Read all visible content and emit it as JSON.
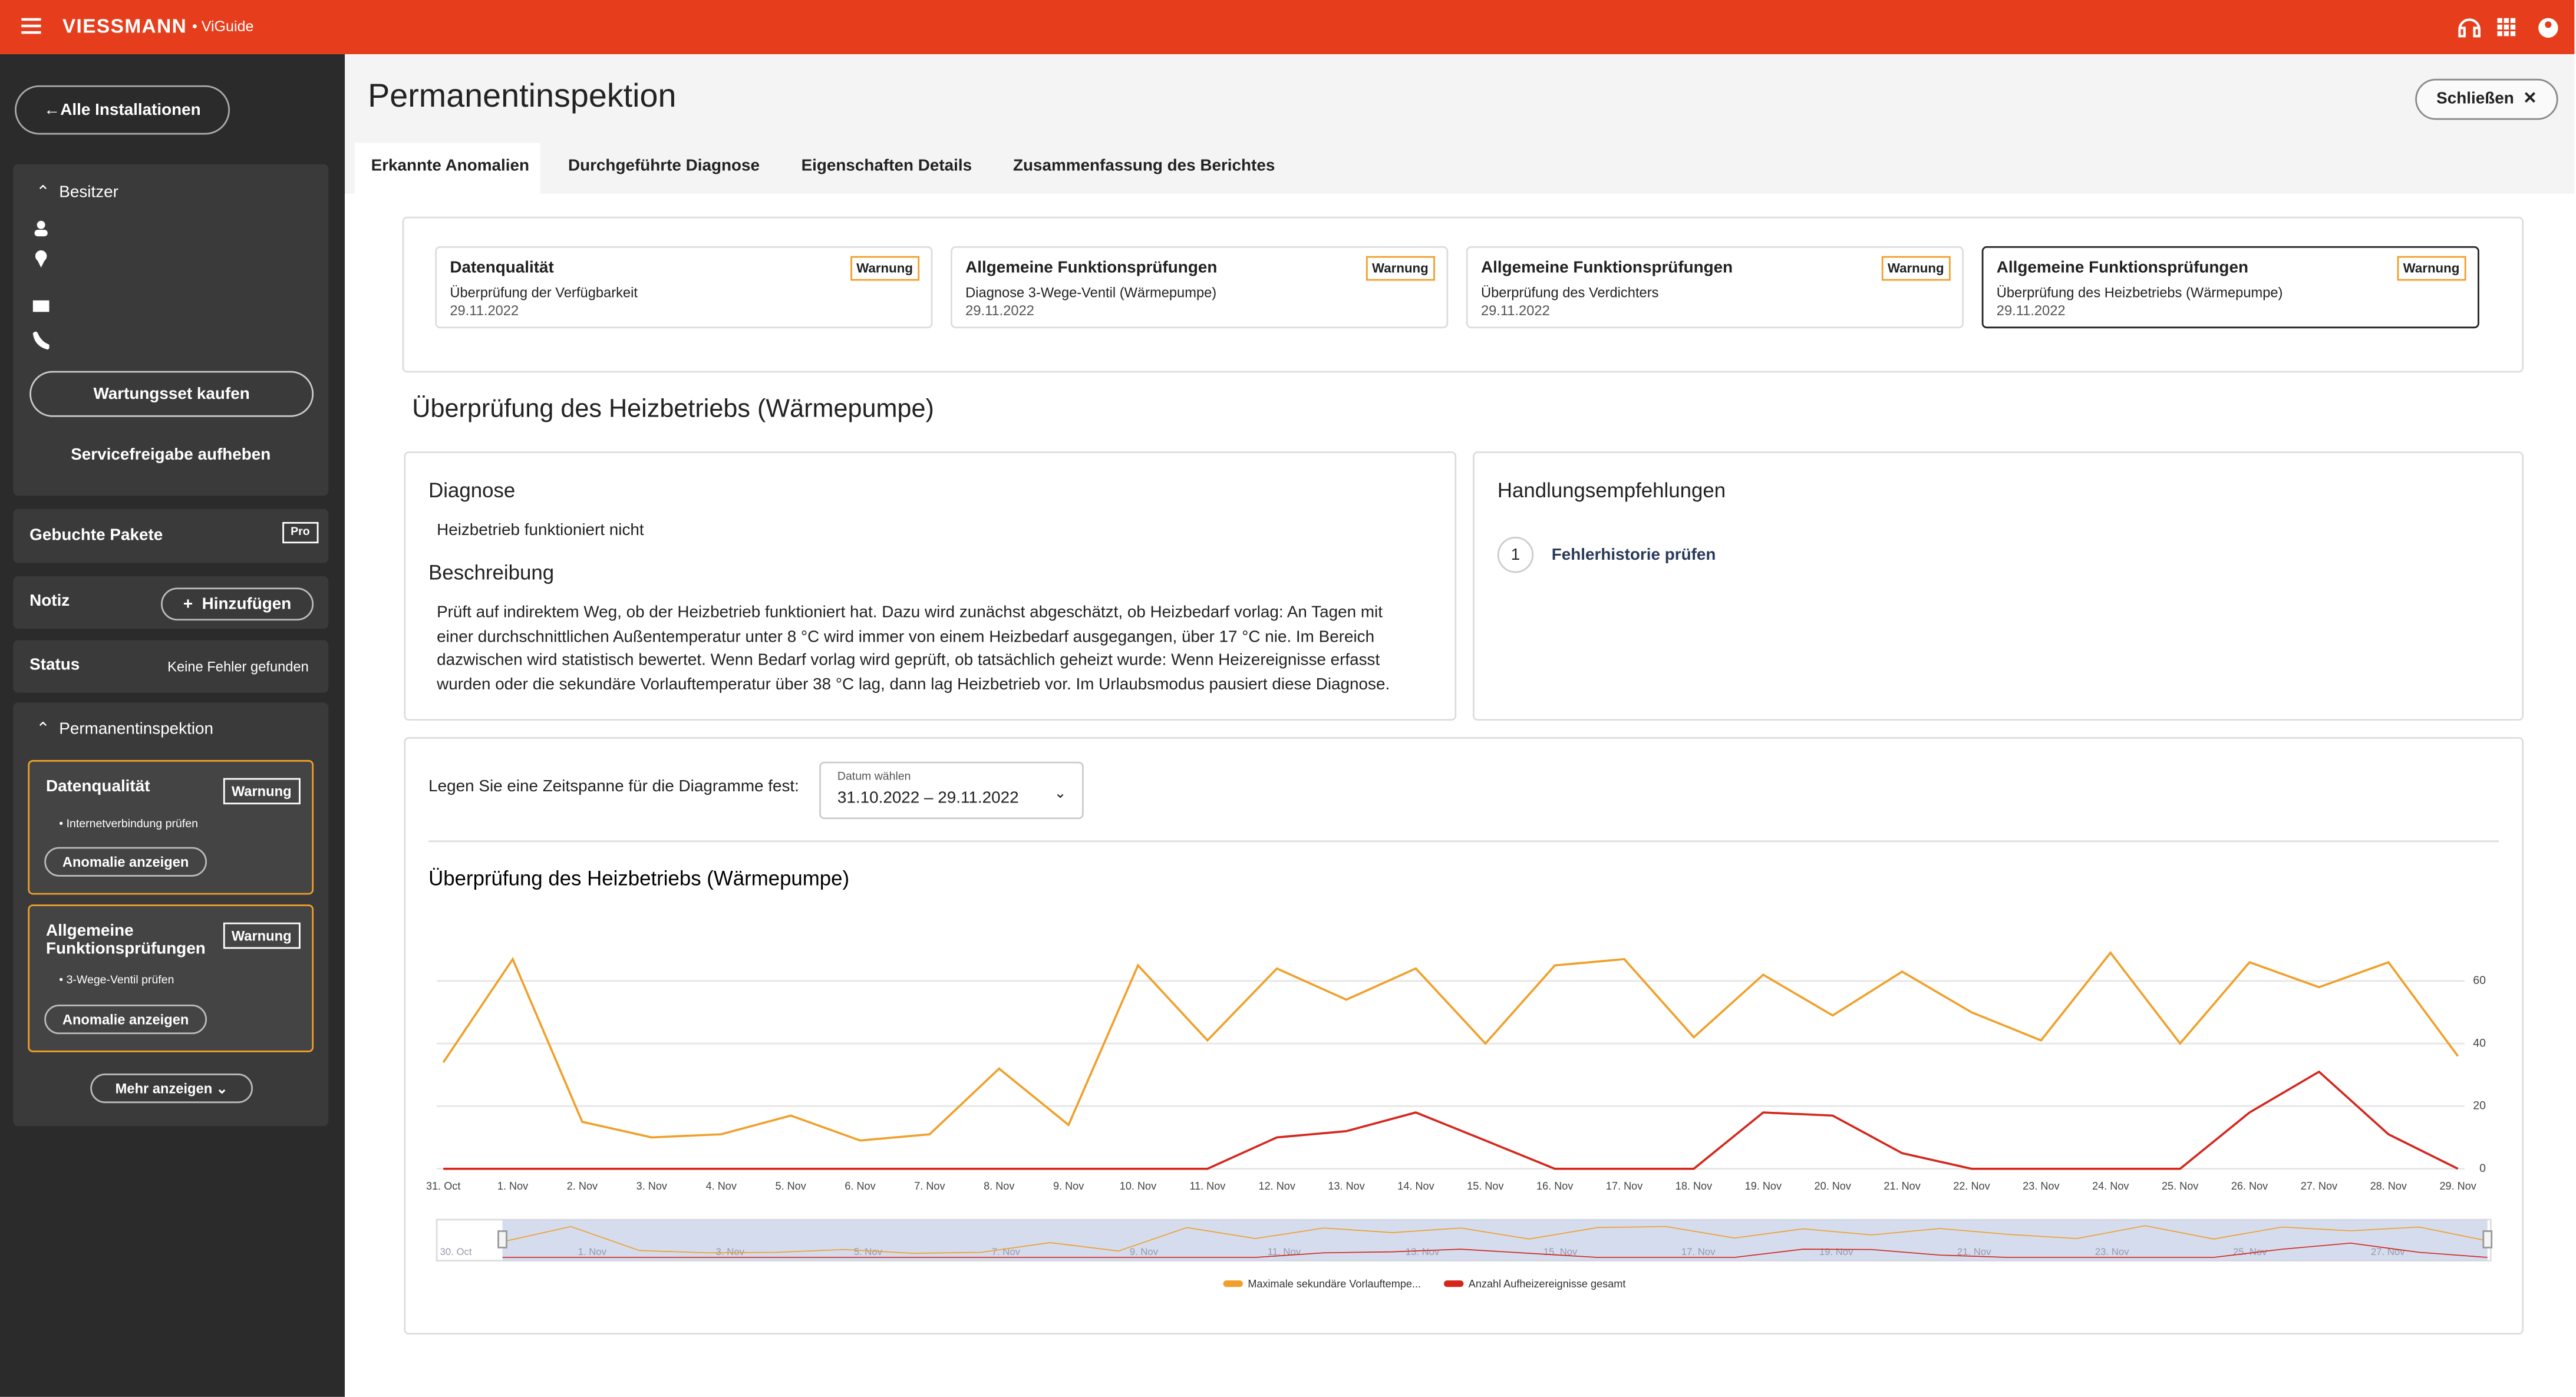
{
  "header": {
    "brand": "VIESSMANN",
    "product": "• ViGuide"
  },
  "sidebar": {
    "back": "Alle Installationen",
    "owner": "Besitzer",
    "buy": "Wartungsset kaufen",
    "release": "Servicefreigabe aufheben",
    "packages": "Gebuchte Pakete",
    "pro": "Pro",
    "note": "Notiz",
    "add": "Hinzufügen",
    "status_label": "Status",
    "status_value": "Keine Fehler gefunden",
    "section": "Permanentinspektion",
    "anomalies": [
      {
        "title": "Datenqualität",
        "badge": "Warnung",
        "item": "Internetverbindung prüfen",
        "button": "Anomalie anzeigen"
      },
      {
        "title": "Allgemeine Funktionsprüfungen",
        "badge": "Warnung",
        "item": "3-Wege-Ventil prüfen",
        "button": "Anomalie anzeigen"
      }
    ],
    "more": "Mehr anzeigen"
  },
  "page": {
    "title": "Permanentinspektion",
    "close": "Schließen",
    "tabs": [
      "Erkannte Anomalien",
      "Durchgeführte Diagnose",
      "Eigenschaften Details",
      "Zusammenfassung des Berichtes"
    ],
    "cards": [
      {
        "title": "Datenqualität",
        "badge": "Warnung",
        "subtitle": "Überprüfung der Verfügbarkeit",
        "date": "29.11.2022"
      },
      {
        "title": "Allgemeine Funktionsprüfungen",
        "badge": "Warnung",
        "subtitle": "Diagnose 3-Wege-Ventil (Wärmepumpe)",
        "date": "29.11.2022"
      },
      {
        "title": "Allgemeine Funktionsprüfungen",
        "badge": "Warnung",
        "subtitle": "Überprüfung des Verdichters",
        "date": "29.11.2022"
      },
      {
        "title": "Allgemeine Funktionsprüfungen",
        "badge": "Warnung",
        "subtitle": "Überprüfung des Heizbetriebs (Wärmepumpe)",
        "date": "29.11.2022"
      }
    ],
    "detail_title": "Überprüfung des Heizbetriebs (Wärmepumpe)",
    "diagnosis": {
      "heading": "Diagnose",
      "text": "Heizbetrieb funktioniert nicht",
      "desc_heading": "Beschreibung",
      "desc": "Prüft auf indirektem Weg, ob der Heizbetrieb funktioniert hat. Dazu wird zunächst abgeschätzt, ob Heizbedarf vorlag: An Tagen mit einer durchschnittlichen Außentemperatur unter 8 °C wird immer von einem Heizbedarf ausgegangen, über 17 °C nie. Im Bereich dazwischen wird statistisch bewertet. Wenn Bedarf vorlag wird geprüft, ob tatsächlich geheizt wurde: Wenn Heizereignisse erfasst wurden oder die sekundäre Vorlauftemperatur über 38 °C lag, dann lag Heizbetrieb vor. Im Urlaubsmodus pausiert diese Diagnose."
    },
    "recommendations": {
      "heading": "Handlungsempfehlungen",
      "items": [
        {
          "number": "1",
          "text": "Fehlerhistorie prüfen"
        }
      ]
    },
    "range_label": "Legen Sie eine Zeitspanne für die Diagramme fest:",
    "date_label": "Datum wählen",
    "date_value": "31.10.2022 – 29.11.2022"
  },
  "chart_data": {
    "type": "line",
    "title": "Überprüfung des Heizbetriebs (Wärmepumpe)",
    "categories": [
      "31. Oct",
      "1. Nov",
      "2. Nov",
      "3. Nov",
      "4. Nov",
      "5. Nov",
      "6. Nov",
      "7. Nov",
      "8. Nov",
      "9. Nov",
      "10. Nov",
      "11. Nov",
      "12. Nov",
      "13. Nov",
      "14. Nov",
      "15. Nov",
      "16. Nov",
      "17. Nov",
      "18. Nov",
      "19. Nov",
      "20. Nov",
      "21. Nov",
      "22. Nov",
      "23. Nov",
      "24. Nov",
      "25. Nov",
      "26. Nov",
      "27. Nov",
      "28. Nov",
      "29. Nov"
    ],
    "series": [
      {
        "name": "Maximale sekundäre Vorlauftempe...",
        "color": "#f0a02a",
        "values": [
          34,
          67,
          15,
          10,
          11,
          17,
          9,
          11,
          32,
          14,
          65,
          41,
          64,
          54,
          64,
          40,
          65,
          67,
          42,
          62,
          49,
          63,
          50,
          41,
          69,
          40,
          66,
          58,
          66,
          36
        ]
      },
      {
        "name": "Anzahl Aufheizereignisse gesamt",
        "color": "#d4271c",
        "values": [
          0,
          0,
          0,
          0,
          0,
          0,
          0,
          0,
          0,
          0,
          0,
          0,
          10,
          12,
          18,
          9,
          0,
          0,
          0,
          18,
          17,
          5,
          0,
          0,
          0,
          0,
          18,
          31,
          11,
          0
        ]
      }
    ],
    "ylim": [
      0,
      75
    ],
    "yticks": [
      0,
      20,
      40,
      60
    ],
    "grid": true,
    "y_axis_side": "right",
    "navigator_labels": [
      "30. Oct",
      "1. Nov",
      "3. Nov",
      "5. Nov",
      "7. Nov",
      "9. Nov",
      "11. Nov",
      "13. Nov",
      "15. Nov",
      "17. Nov",
      "19. Nov",
      "21. Nov",
      "23. Nov",
      "25. Nov",
      "27. Nov"
    ]
  }
}
